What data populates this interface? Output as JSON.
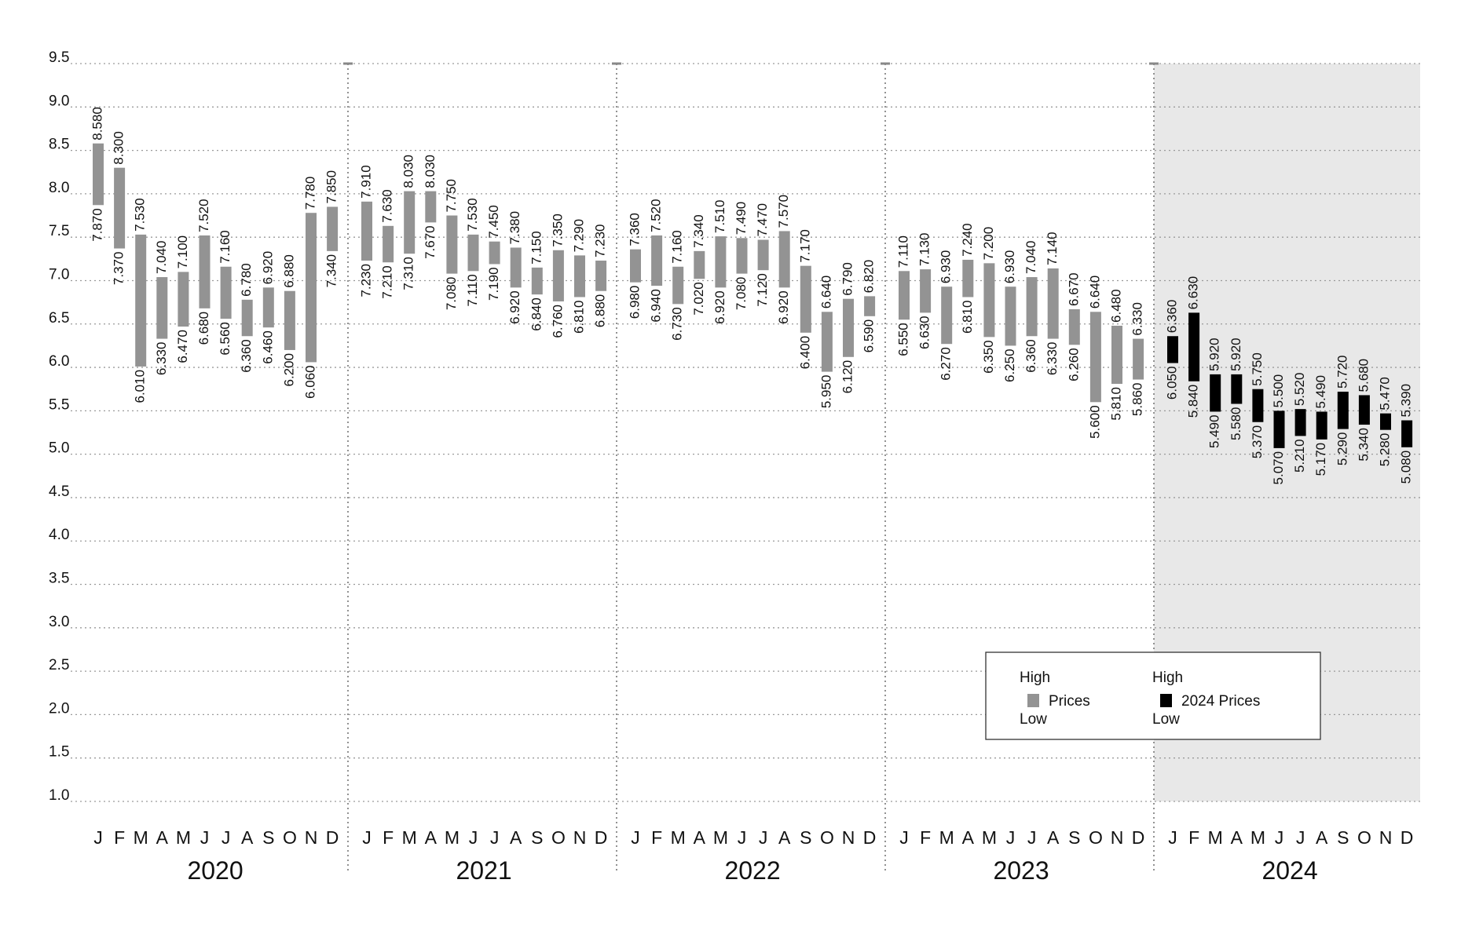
{
  "chart_data": {
    "type": "bar",
    "subtype": "floating-range",
    "title": "",
    "y_ticks": [
      "9.5",
      "9.0",
      "8.5",
      "8.0",
      "7.5",
      "7.0",
      "6.5",
      "6.0",
      "5.5",
      "5.0",
      "4.5",
      "4.0",
      "3.5",
      "3.0",
      "2.5",
      "2.0",
      "1.5",
      "1.0"
    ],
    "ylim": [
      1.0,
      9.5
    ],
    "grid": true,
    "months": [
      "J",
      "F",
      "M",
      "A",
      "M",
      "J",
      "J",
      "A",
      "S",
      "O",
      "N",
      "D"
    ],
    "highlight_year": "2024",
    "colors": {
      "prices": "#939393",
      "prices_2024": "#000000",
      "highlight_bg": "#e8e8e8",
      "grid": "#9a9a9a"
    },
    "years": [
      {
        "year": "2020",
        "series": "Prices",
        "high": [
          "8.580",
          "8.300",
          "7.530",
          "7.040",
          "7.100",
          "7.520",
          "7.160",
          "6.780",
          "6.920",
          "6.880",
          "7.780",
          "7.850"
        ],
        "low": [
          "7.870",
          "7.370",
          "6.010",
          "6.330",
          "6.470",
          "6.680",
          "6.560",
          "6.360",
          "6.460",
          "6.200",
          "6.060",
          "7.340"
        ]
      },
      {
        "year": "2021",
        "series": "Prices",
        "high": [
          "7.910",
          "7.630",
          "8.030",
          "8.030",
          "7.750",
          "7.530",
          "7.450",
          "7.380",
          "7.150",
          "7.350",
          "7.290",
          "7.230"
        ],
        "low": [
          "7.230",
          "7.210",
          "7.310",
          "7.670",
          "7.080",
          "7.110",
          "7.190",
          "6.920",
          "6.840",
          "6.760",
          "6.810",
          "6.880"
        ]
      },
      {
        "year": "2022",
        "series": "Prices",
        "high": [
          "7.360",
          "7.520",
          "7.160",
          "7.340",
          "7.510",
          "7.490",
          "7.470",
          "7.570",
          "7.170",
          "6.640",
          "6.790",
          "6.820"
        ],
        "low": [
          "6.980",
          "6.940",
          "6.730",
          "7.020",
          "6.920",
          "7.080",
          "7.120",
          "6.920",
          "6.400",
          "5.950",
          "6.120",
          "6.590"
        ]
      },
      {
        "year": "2023",
        "series": "Prices",
        "high": [
          "7.110",
          "7.130",
          "6.930",
          "7.240",
          "7.200",
          "6.930",
          "7.040",
          "7.140",
          "6.670",
          "6.640",
          "6.480",
          "6.330"
        ],
        "low": [
          "6.550",
          "6.630",
          "6.270",
          "6.810",
          "6.350",
          "6.250",
          "6.360",
          "6.330",
          "6.260",
          "5.600",
          "5.810",
          "5.860"
        ]
      },
      {
        "year": "2024",
        "series": "2024 Prices",
        "high": [
          "6.360",
          "6.630",
          "5.920",
          "5.920",
          "5.750",
          "5.500",
          "5.520",
          "5.490",
          "5.720",
          "5.680",
          "5.470",
          "5.390"
        ],
        "low": [
          "6.050",
          "5.840",
          "5.490",
          "5.580",
          "5.370",
          "5.070",
          "5.210",
          "5.170",
          "5.290",
          "5.340",
          "5.280",
          "5.080"
        ]
      }
    ],
    "legend": {
      "position": "bottom-right",
      "entries": [
        {
          "top": "High",
          "label": "Prices",
          "bottom": "Low",
          "color": "#939393"
        },
        {
          "top": "High",
          "label": "2024 Prices",
          "bottom": "Low",
          "color": "#000000"
        }
      ]
    }
  }
}
